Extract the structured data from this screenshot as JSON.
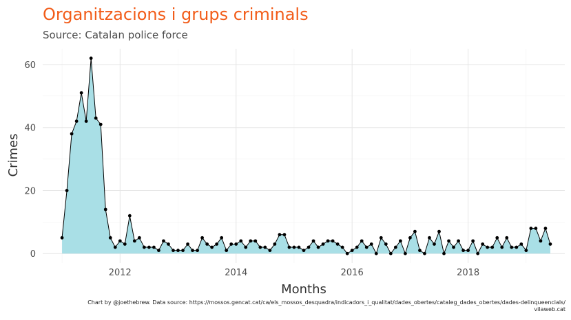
{
  "header": {
    "title": "Organitzacions i grups criminals",
    "subtitle": "Source: Catalan police force"
  },
  "caption": {
    "line1": "Chart by @joethebrew. Data source: https://mossos.gencat.cat/ca/els_mossos_desquadra/indicadors_i_qualitat/dades_obertes/cataleg_dades_obertes/dades-delinqueencials/",
    "line2": "vilaweb.cat"
  },
  "colors": {
    "title": "#f25c19",
    "area_fill": "#a9dfe6",
    "line": "#000000",
    "points": "#000000",
    "grid": "#e5e5e5"
  },
  "chart_data": {
    "type": "area",
    "title": "Organitzacions i grups criminals",
    "subtitle": "Source: Catalan police force",
    "xlabel": "Months",
    "ylabel": "Crimes",
    "x_start": "2011-01",
    "x_interval": "month",
    "xlim": [
      "2010-09",
      "2019-09"
    ],
    "ylim": [
      -3,
      65
    ],
    "x_ticks": [
      "2012",
      "2014",
      "2016",
      "2018"
    ],
    "y_ticks": [
      0,
      20,
      40,
      60
    ],
    "grid": true,
    "legend": "none",
    "series": [
      {
        "values": [
          5,
          20,
          38,
          42,
          51,
          42,
          62,
          43,
          41,
          14,
          5,
          2,
          4,
          3,
          12,
          4,
          5,
          2,
          2,
          2,
          1,
          4,
          3,
          1,
          1,
          1,
          3,
          1,
          1,
          5,
          3,
          2,
          3,
          5,
          1,
          3,
          3,
          4,
          2,
          4,
          4,
          2,
          2,
          1,
          3,
          6,
          6,
          2,
          2,
          2,
          1,
          2,
          4,
          2,
          3,
          4,
          4,
          3,
          2,
          0,
          1,
          2,
          4,
          2,
          3,
          0,
          5,
          3,
          0,
          2,
          4,
          0,
          5,
          7,
          1,
          0,
          5,
          3,
          7,
          0,
          4,
          2,
          4,
          1,
          1,
          4,
          0,
          3,
          2,
          2,
          5,
          2,
          5,
          2,
          2,
          3,
          1,
          8,
          8,
          4,
          8,
          3
        ]
      }
    ]
  }
}
